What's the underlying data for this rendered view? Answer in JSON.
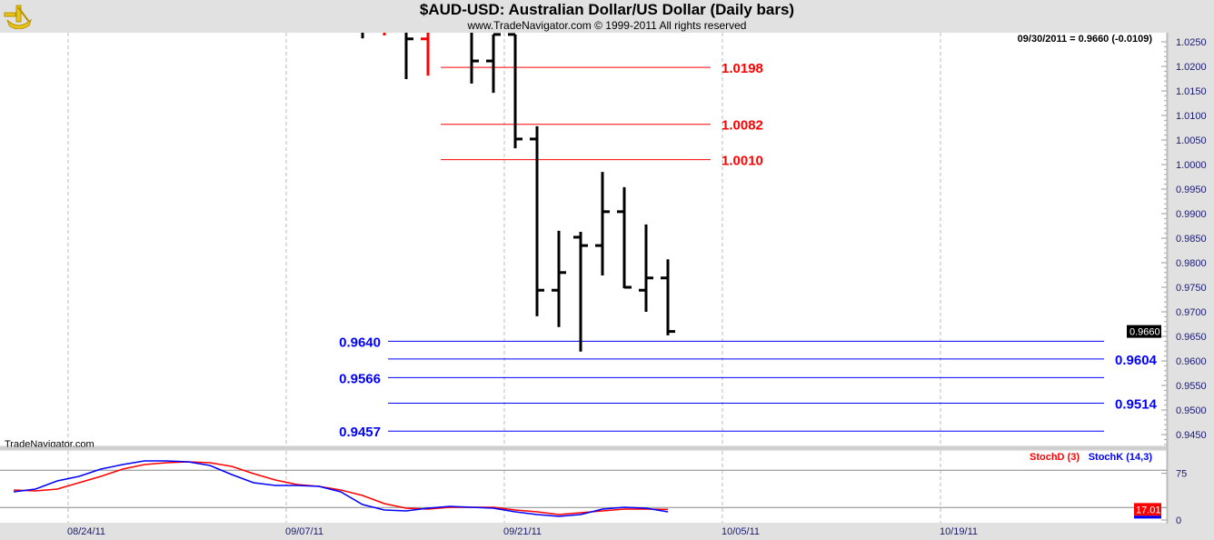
{
  "header": {
    "title": "$AUD-USD:  Australian Dollar/US Dollar  (Daily bars)",
    "subtitle": "www.TradeNavigator.com © 1999-2011 All rights reserved",
    "watermark": "TradeNavigator.com",
    "last_readout": "09/30/2011 = 0.9660 (-0.0109)",
    "logo": "TradeNavigator sextant"
  },
  "colors": {
    "up": "#000000",
    "down": "#ff0000",
    "support": "#0000ff",
    "resistance": "#ff0000",
    "stochD": "#ff0000",
    "stochK": "#0000ff",
    "axis_text": "#1a1a70"
  },
  "chart_data": [
    {
      "type": "ohlc",
      "title": "$AUD-USD:  Australian Dollar/US Dollar  (Daily bars)",
      "ylim": [
        0.942,
        1.0268
      ],
      "y_ticks": [
        "1.0250",
        "1.0200",
        "1.0150",
        "1.0100",
        "1.0050",
        "1.0000",
        "0.9950",
        "0.9900",
        "0.9850",
        "0.9800",
        "0.9750",
        "0.9700",
        "0.9650",
        "0.9600",
        "0.9550",
        "0.9500",
        "0.9450"
      ],
      "x_tick_labels": [
        "08/24/11",
        "09/07/11",
        "09/21/11",
        "10/05/11",
        "10/19/11"
      ],
      "dates": [
        "08/19",
        "08/22",
        "08/23",
        "08/24",
        "08/25",
        "08/26",
        "08/29",
        "08/30",
        "08/31",
        "09/01",
        "09/02",
        "09/05",
        "09/06",
        "09/07",
        "09/08",
        "09/09",
        "09/12",
        "09/13",
        "09/14",
        "09/15",
        "09/16",
        "09/19",
        "09/20",
        "09/21",
        "09/22",
        "09/23",
        "09/26",
        "09/27",
        "09/28",
        "09/29",
        "09/30"
      ],
      "bars": [
        {
          "date": "09/12",
          "open": null,
          "high": null,
          "low": 1.0257,
          "close": null,
          "dir": "up"
        },
        {
          "date": "09/13",
          "open": null,
          "high": null,
          "low": 1.0263,
          "close": null,
          "dir": "down"
        },
        {
          "date": "09/14",
          "open": null,
          "high": null,
          "low": 1.0174,
          "close": 1.0256,
          "dir": "up"
        },
        {
          "date": "09/15",
          "open": 1.0256,
          "high": null,
          "low": 1.0181,
          "close": null,
          "dir": "down"
        },
        {
          "date": "09/19",
          "open": null,
          "high": null,
          "low": 1.0165,
          "close": 1.0211,
          "dir": "up"
        },
        {
          "date": "09/20",
          "open": 1.0211,
          "high": 1.0265,
          "low": 1.0146,
          "close": 1.0265,
          "dir": "up"
        },
        {
          "date": "09/21",
          "open": 1.0265,
          "high": 1.0265,
          "low": 1.0033,
          "close": 1.0052,
          "dir": "up"
        },
        {
          "date": "09/22",
          "open": 1.0052,
          "high": 1.0078,
          "low": 0.9691,
          "close": 0.9744,
          "dir": "up"
        },
        {
          "date": "09/23",
          "open": 0.9744,
          "high": 0.9865,
          "low": 0.9669,
          "close": 0.978,
          "dir": "up"
        },
        {
          "date": "09/26",
          "open": 0.9852,
          "high": 0.9863,
          "low": 0.9619,
          "close": 0.9835,
          "dir": "up"
        },
        {
          "date": "09/27",
          "open": 0.9835,
          "high": 0.9985,
          "low": 0.9774,
          "close": 0.9904,
          "dir": "up"
        },
        {
          "date": "09/28",
          "open": 0.9904,
          "high": 0.9954,
          "low": 0.9748,
          "close": 0.975,
          "dir": "up"
        },
        {
          "date": "09/29",
          "open": 0.9744,
          "high": 0.9878,
          "low": 0.97,
          "close": 0.9769,
          "dir": "up"
        },
        {
          "date": "09/30",
          "open": 0.9769,
          "high": 0.9807,
          "low": 0.9652,
          "close": 0.966,
          "dir": "up"
        }
      ],
      "last_price_label": "0.9660",
      "levels": [
        {
          "label": "1.0198",
          "value": 1.0198,
          "kind": "resistance",
          "from": "09/16",
          "to": "10/04",
          "label_side": "right"
        },
        {
          "label": "1.0082",
          "value": 1.0082,
          "kind": "resistance",
          "from": "09/16",
          "to": "10/04",
          "label_side": "right"
        },
        {
          "label": "1.0010",
          "value": 1.001,
          "kind": "resistance",
          "from": "09/16",
          "to": "10/04",
          "label_side": "right"
        },
        {
          "label": "0.9640",
          "value": 0.964,
          "kind": "support",
          "from": "09/14",
          "to": "10/28",
          "label_side": "left"
        },
        {
          "label": "0.9604",
          "value": 0.9604,
          "kind": "support",
          "from": "09/14",
          "to": "10/28",
          "label_side": "right"
        },
        {
          "label": "0.9566",
          "value": 0.9566,
          "kind": "support",
          "from": "09/14",
          "to": "10/28",
          "label_side": "left"
        },
        {
          "label": "0.9514",
          "value": 0.9514,
          "kind": "support",
          "from": "09/14",
          "to": "10/28",
          "label_side": "right"
        },
        {
          "label": "0.9457",
          "value": 0.9457,
          "kind": "support",
          "from": "09/14",
          "to": "10/28",
          "label_side": "left"
        }
      ],
      "grid": "vertical dashed"
    },
    {
      "type": "line",
      "ylim": [
        0,
        100
      ],
      "reference_lines": [
        80,
        20
      ],
      "y_ticks": [
        "75",
        "0"
      ],
      "last_value_label": "17.01",
      "series": [
        {
          "name": "StochD (3)",
          "color": "#ff0000",
          "values": [
            48.2,
            46.7,
            49.6,
            59.9,
            70.1,
            81.8,
            89.1,
            92.0,
            93.4,
            92.0,
            86.1,
            74.5,
            64.2,
            56.9,
            54.0,
            48.2,
            39.4,
            26.3,
            19.0,
            17.5,
            20.4,
            20.4,
            20.4,
            16.1,
            13.1,
            8.8,
            11.7,
            14.6,
            17.5,
            17.5,
            17.0
          ]
        },
        {
          "name": "StochK (14,3)",
          "color": "#0000ff",
          "values": [
            45.3,
            49.6,
            62.8,
            70.1,
            81.8,
            89.1,
            94.9,
            94.9,
            93.4,
            87.6,
            73.0,
            59.9,
            55.5,
            55.5,
            54.0,
            45.3,
            24.8,
            16.1,
            14.6,
            19.0,
            21.9,
            20.4,
            19.0,
            13.1,
            8.8,
            5.8,
            8.8,
            17.5,
            20.4,
            19.0,
            13.1
          ]
        }
      ]
    }
  ]
}
